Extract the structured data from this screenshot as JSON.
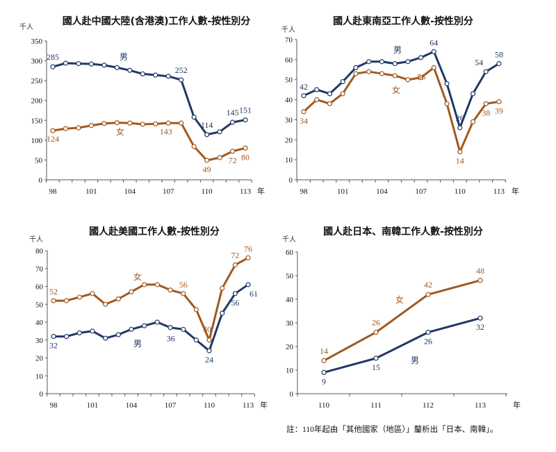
{
  "colors": {
    "male": "#1f3864",
    "female": "#a0581f",
    "axis": "#555555"
  },
  "note": "註：110年起由「其他國家（地區）」釐析出「日本、南韓」。",
  "chart_data": [
    {
      "type": "line",
      "title": "國人赴中國大陸(含港澳)工作人數-按性別分",
      "ylabel": "千人",
      "xlabel": "年",
      "x": [
        98,
        99,
        100,
        101,
        102,
        103,
        104,
        105,
        106,
        107,
        108,
        109,
        110,
        111,
        112,
        113
      ],
      "xticklabels": [
        "98",
        "101",
        "104",
        "107",
        "110",
        "113"
      ],
      "ylim": [
        0,
        350
      ],
      "yticks": [
        0,
        50,
        100,
        150,
        200,
        250,
        300,
        350
      ],
      "series": [
        {
          "name": "男",
          "color": "#1f3864",
          "values": [
            285,
            294,
            293,
            292,
            289,
            283,
            276,
            267,
            264,
            261,
            252,
            158,
            114,
            121,
            145,
            151
          ],
          "labeled": [
            0,
            10,
            12,
            14,
            15
          ]
        },
        {
          "name": "女",
          "color": "#a0581f",
          "values": [
            124,
            129,
            131,
            137,
            142,
            144,
            143,
            140,
            141,
            143,
            143,
            84,
            49,
            56,
            72,
            80
          ],
          "labeled": [
            0,
            10,
            12,
            14,
            15
          ]
        }
      ]
    },
    {
      "type": "line",
      "title": "國人赴東南亞工作人數-按性別分",
      "ylabel": "千人",
      "xlabel": "年",
      "x": [
        98,
        99,
        100,
        101,
        102,
        103,
        104,
        105,
        106,
        107,
        108,
        109,
        110,
        111,
        112,
        113
      ],
      "xticklabels": [
        "98",
        "101",
        "104",
        "107",
        "110",
        "113"
      ],
      "ylim": [
        0,
        70
      ],
      "yticks": [
        0,
        10,
        20,
        30,
        40,
        50,
        60,
        70
      ],
      "series": [
        {
          "name": "男",
          "color": "#1f3864",
          "values": [
            42,
            45,
            43,
            49,
            56,
            59,
            59,
            58,
            59,
            61,
            64,
            48,
            26,
            43,
            54,
            58
          ],
          "labeled": [
            0,
            10,
            12,
            14,
            15
          ]
        },
        {
          "name": "女",
          "color": "#a0581f",
          "values": [
            34,
            40,
            38,
            43,
            53,
            54,
            53,
            52,
            50,
            51,
            56,
            38,
            14,
            29,
            38,
            39
          ],
          "labeled": [
            0,
            10,
            12,
            14,
            15
          ]
        }
      ]
    },
    {
      "type": "line",
      "title": "國人赴美國工作人數-按性別分",
      "ylabel": "千人",
      "xlabel": "年",
      "x": [
        98,
        99,
        100,
        101,
        102,
        103,
        104,
        105,
        106,
        107,
        108,
        109,
        110,
        111,
        112,
        113
      ],
      "xticklabels": [
        "98",
        "101",
        "104",
        "107",
        "110",
        "113"
      ],
      "ylim": [
        0,
        80
      ],
      "yticks": [
        0,
        10,
        20,
        30,
        40,
        50,
        60,
        70,
        80
      ],
      "series": [
        {
          "name": "女",
          "color": "#a0581f",
          "values": [
            52,
            52,
            54,
            56,
            50,
            53,
            57,
            61,
            61,
            58,
            56,
            47,
            30,
            59,
            72,
            76
          ],
          "labeled": [
            0,
            10,
            12,
            14,
            15
          ]
        },
        {
          "name": "男",
          "color": "#1f3864",
          "values": [
            32,
            32,
            34,
            35,
            31,
            33,
            36,
            38,
            40,
            37,
            36,
            30,
            24,
            45,
            56,
            61
          ],
          "labeled": [
            0,
            10,
            12,
            14,
            15
          ]
        }
      ]
    },
    {
      "type": "line",
      "title": "國人赴日本、南韓工作人數-按性別分",
      "ylabel": "千人",
      "xlabel": "年",
      "x": [
        110,
        111,
        112,
        113
      ],
      "xticklabels": [
        "110",
        "111",
        "112",
        "113"
      ],
      "ylim": [
        0,
        60
      ],
      "yticks": [
        0,
        10,
        20,
        30,
        40,
        50,
        60
      ],
      "series": [
        {
          "name": "女",
          "color": "#a0581f",
          "values": [
            14,
            26,
            42,
            48
          ],
          "labeled": [
            0,
            1,
            2,
            3
          ]
        },
        {
          "name": "男",
          "color": "#1f3864",
          "values": [
            9,
            15,
            26,
            32
          ],
          "labeled": [
            0,
            1,
            2,
            3
          ]
        }
      ]
    }
  ]
}
